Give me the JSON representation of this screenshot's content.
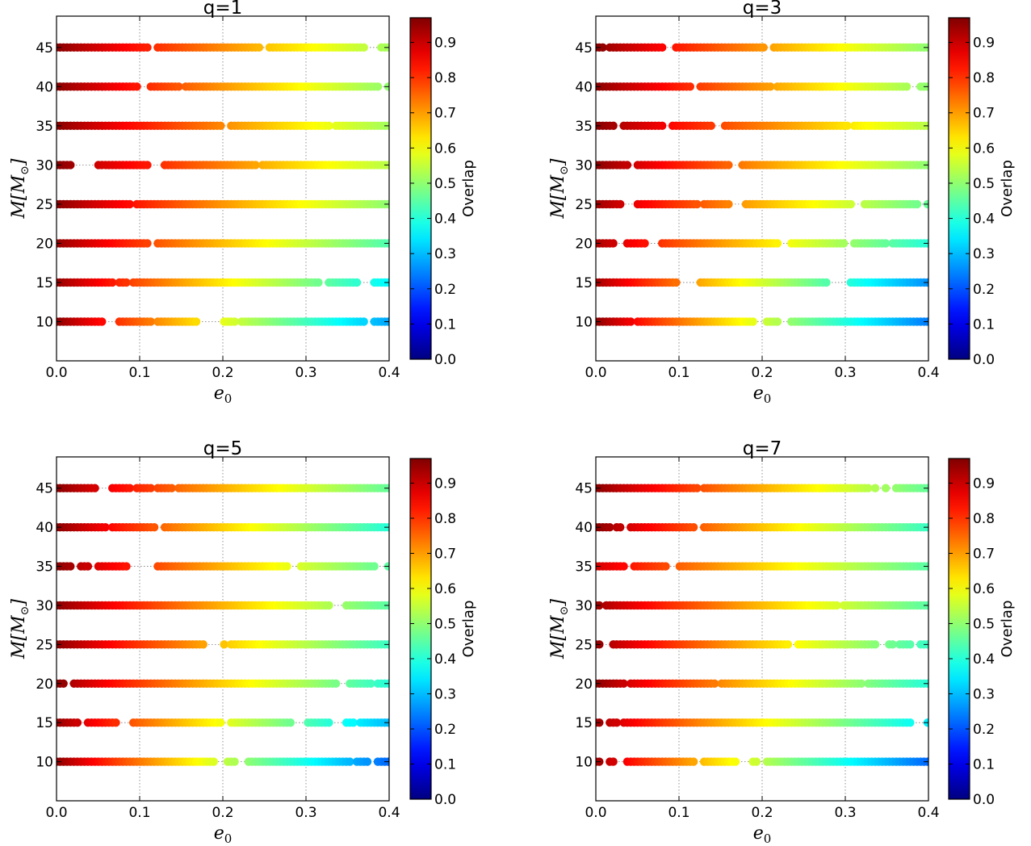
{
  "colormap": "jet",
  "colorbar": {
    "label": "Overlap",
    "range": [
      0.0,
      0.97
    ],
    "ticks": [
      "0.0",
      "0.1",
      "0.2",
      "0.3",
      "0.4",
      "0.5",
      "0.6",
      "0.7",
      "0.8",
      "0.9"
    ],
    "tick_values": [
      0.0,
      0.1,
      0.2,
      0.3,
      0.4,
      0.5,
      0.6,
      0.7,
      0.8,
      0.9
    ]
  },
  "chart_data": [
    {
      "type": "scatter",
      "title": "q=1",
      "xlabel": "e0",
      "ylabel": "M[M⊙]",
      "xlim": [
        0.0,
        0.4
      ],
      "ylim": [
        5,
        49
      ],
      "xticks": [
        "0.0",
        "0.1",
        "0.2",
        "0.3",
        "0.4"
      ],
      "xtick_values": [
        0.0,
        0.1,
        0.2,
        0.3,
        0.4
      ],
      "yticks": [
        "10",
        "15",
        "20",
        "25",
        "30",
        "35",
        "40",
        "45"
      ],
      "ytick_values": [
        10,
        15,
        20,
        25,
        30,
        35,
        40,
        45
      ],
      "grid": true,
      "rows": [
        {
          "M": 10,
          "e_start": 0.0,
          "e_end": 0.4,
          "overlap_start": 0.97,
          "overlap_end": 0.28,
          "gaps": [
            [
              0.055,
              0.075
            ],
            [
              0.115,
              0.12
            ],
            [
              0.17,
              0.2
            ],
            [
              0.215,
              0.22
            ],
            [
              0.37,
              0.38
            ]
          ]
        },
        {
          "M": 15,
          "e_start": 0.0,
          "e_end": 0.4,
          "overlap_start": 0.96,
          "overlap_end": 0.36,
          "gaps": [
            [
              0.07,
              0.075
            ],
            [
              0.085,
              0.09
            ],
            [
              0.315,
              0.325
            ],
            [
              0.365,
              0.38
            ]
          ]
        },
        {
          "M": 20,
          "e_start": 0.0,
          "e_end": 0.4,
          "overlap_start": 0.96,
          "overlap_end": 0.44,
          "gaps": [
            [
              0.11,
              0.118
            ]
          ]
        },
        {
          "M": 25,
          "e_start": 0.0,
          "e_end": 0.4,
          "overlap_start": 0.97,
          "overlap_end": 0.5,
          "gaps": [
            [
              0.09,
              0.095
            ]
          ]
        },
        {
          "M": 30,
          "e_start": 0.0,
          "e_end": 0.4,
          "overlap_start": 0.97,
          "overlap_end": 0.54,
          "gaps": [
            [
              0.02,
              0.05
            ],
            [
              0.11,
              0.13
            ],
            [
              0.24,
              0.245
            ]
          ]
        },
        {
          "M": 35,
          "e_start": 0.0,
          "e_end": 0.4,
          "overlap_start": 0.97,
          "overlap_end": 0.52,
          "gaps": [
            [
              0.2,
              0.21
            ],
            [
              0.33,
              0.335
            ]
          ]
        },
        {
          "M": 40,
          "e_start": 0.0,
          "e_end": 0.4,
          "overlap_start": 0.97,
          "overlap_end": 0.5,
          "gaps": [
            [
              0.098,
              0.112
            ],
            [
              0.148,
              0.152
            ],
            [
              0.39,
              0.397
            ]
          ]
        },
        {
          "M": 45,
          "e_start": 0.0,
          "e_end": 0.4,
          "overlap_start": 0.97,
          "overlap_end": 0.52,
          "gaps": [
            [
              0.11,
              0.12
            ],
            [
              0.245,
              0.255
            ],
            [
              0.37,
              0.39
            ]
          ]
        }
      ]
    },
    {
      "type": "scatter",
      "title": "q=3",
      "xlabel": "e0",
      "ylabel": "M[M⊙]",
      "xlim": [
        0.0,
        0.4
      ],
      "ylim": [
        5,
        49
      ],
      "xticks": [
        "0.0",
        "0.1",
        "0.2",
        "0.3",
        "0.4"
      ],
      "xtick_values": [
        0.0,
        0.1,
        0.2,
        0.3,
        0.4
      ],
      "yticks": [
        "10",
        "15",
        "20",
        "25",
        "30",
        "35",
        "40",
        "45"
      ],
      "ytick_values": [
        10,
        15,
        20,
        25,
        30,
        35,
        40,
        45
      ],
      "grid": true,
      "rows": [
        {
          "M": 10,
          "e_start": 0.0,
          "e_end": 0.4,
          "overlap_start": 0.97,
          "overlap_end": 0.24,
          "gaps": [
            [
              0.045,
              0.05
            ],
            [
              0.19,
              0.205
            ],
            [
              0.22,
              0.235
            ]
          ]
        },
        {
          "M": 15,
          "e_start": 0.0,
          "e_end": 0.4,
          "overlap_start": 0.95,
          "overlap_end": 0.26,
          "gaps": [
            [
              0.1,
              0.125
            ],
            [
              0.28,
              0.305
            ]
          ]
        },
        {
          "M": 20,
          "e_start": 0.0,
          "e_end": 0.4,
          "overlap_start": 0.94,
          "overlap_end": 0.4,
          "gaps": [
            [
              0.025,
              0.035
            ],
            [
              0.06,
              0.078
            ],
            [
              0.22,
              0.235
            ],
            [
              0.3,
              0.31
            ],
            [
              0.35,
              0.355
            ]
          ]
        },
        {
          "M": 25,
          "e_start": 0.0,
          "e_end": 0.4,
          "overlap_start": 0.95,
          "overlap_end": 0.46,
          "gaps": [
            [
              0.03,
              0.05
            ],
            [
              0.125,
              0.13
            ],
            [
              0.16,
              0.18
            ],
            [
              0.31,
              0.32
            ],
            [
              0.39,
              0.395
            ]
          ]
        },
        {
          "M": 30,
          "e_start": 0.0,
          "e_end": 0.4,
          "overlap_start": 0.97,
          "overlap_end": 0.5,
          "gaps": [
            [
              0.04,
              0.05
            ],
            [
              0.16,
              0.175
            ]
          ]
        },
        {
          "M": 35,
          "e_start": 0.0,
          "e_end": 0.4,
          "overlap_start": 0.97,
          "overlap_end": 0.54,
          "gaps": [
            [
              0.025,
              0.032
            ],
            [
              0.082,
              0.09
            ],
            [
              0.142,
              0.152
            ],
            [
              0.305,
              0.31
            ]
          ]
        },
        {
          "M": 40,
          "e_start": 0.0,
          "e_end": 0.4,
          "overlap_start": 0.97,
          "overlap_end": 0.5,
          "gaps": [
            [
              0.115,
              0.122
            ],
            [
              0.212,
              0.218
            ],
            [
              0.375,
              0.39
            ]
          ]
        },
        {
          "M": 45,
          "e_start": 0.0,
          "e_end": 0.4,
          "overlap_start": 0.97,
          "overlap_end": 0.5,
          "gaps": [
            [
              0.01,
              0.015
            ],
            [
              0.082,
              0.095
            ],
            [
              0.205,
              0.212
            ]
          ]
        }
      ]
    },
    {
      "type": "scatter",
      "title": "q=5",
      "xlabel": "e0",
      "ylabel": "M[M⊙]",
      "xlim": [
        0.0,
        0.4
      ],
      "ylim": [
        5,
        49
      ],
      "xticks": [
        "0.0",
        "0.1",
        "0.2",
        "0.3",
        "0.4"
      ],
      "xtick_values": [
        0.0,
        0.1,
        0.2,
        0.3,
        0.4
      ],
      "yticks": [
        "10",
        "15",
        "20",
        "25",
        "30",
        "35",
        "40",
        "45"
      ],
      "ytick_values": [
        10,
        15,
        20,
        25,
        30,
        35,
        40,
        45
      ],
      "grid": true,
      "rows": [
        {
          "M": 10,
          "e_start": 0.0,
          "e_end": 0.4,
          "overlap_start": 0.97,
          "overlap_end": 0.22,
          "gaps": [
            [
              0.19,
              0.205
            ],
            [
              0.215,
              0.228
            ],
            [
              0.355,
              0.36
            ],
            [
              0.375,
              0.385
            ]
          ]
        },
        {
          "M": 15,
          "e_start": 0.0,
          "e_end": 0.4,
          "overlap_start": 0.96,
          "overlap_end": 0.3,
          "gaps": [
            [
              0.028,
              0.035
            ],
            [
              0.072,
              0.09
            ],
            [
              0.2,
              0.21
            ],
            [
              0.285,
              0.3
            ],
            [
              0.33,
              0.345
            ],
            [
              0.36,
              0.365
            ]
          ]
        },
        {
          "M": 20,
          "e_start": 0.0,
          "e_end": 0.4,
          "overlap_start": 0.97,
          "overlap_end": 0.4,
          "gaps": [
            [
              0.01,
              0.018
            ],
            [
              0.34,
              0.35
            ],
            [
              0.38,
              0.385
            ]
          ]
        },
        {
          "M": 25,
          "e_start": 0.0,
          "e_end": 0.4,
          "overlap_start": 0.97,
          "overlap_end": 0.42,
          "gaps": [
            [
              0.09,
              0.092
            ],
            [
              0.18,
              0.2
            ],
            [
              0.205,
              0.21
            ]
          ]
        },
        {
          "M": 30,
          "e_start": 0.0,
          "e_end": 0.4,
          "overlap_start": 0.97,
          "overlap_end": 0.45,
          "gaps": [
            [
              0.33,
              0.345
            ]
          ]
        },
        {
          "M": 35,
          "e_start": 0.0,
          "e_end": 0.4,
          "overlap_start": 0.97,
          "overlap_end": 0.45,
          "gaps": [
            [
              0.02,
              0.028
            ],
            [
              0.04,
              0.05
            ],
            [
              0.085,
              0.118
            ],
            [
              0.28,
              0.29
            ],
            [
              0.385,
              0.398
            ]
          ]
        },
        {
          "M": 40,
          "e_start": 0.0,
          "e_end": 0.4,
          "overlap_start": 0.97,
          "overlap_end": 0.4,
          "gaps": [
            [
              0.06,
              0.065
            ],
            [
              0.118,
              0.127
            ]
          ]
        },
        {
          "M": 45,
          "e_start": 0.0,
          "e_end": 0.4,
          "overlap_start": 0.97,
          "overlap_end": 0.46,
          "gaps": [
            [
              0.05,
              0.065
            ],
            [
              0.09,
              0.095
            ],
            [
              0.115,
              0.12
            ],
            [
              0.14,
              0.145
            ]
          ]
        }
      ]
    },
    {
      "type": "scatter",
      "title": "q=7",
      "xlabel": "e0",
      "ylabel": "M[M⊙]",
      "xlim": [
        0.0,
        0.4
      ],
      "ylim": [
        5,
        49
      ],
      "xticks": [
        "0.0",
        "0.1",
        "0.2",
        "0.3",
        "0.4"
      ],
      "xtick_values": [
        0.0,
        0.1,
        0.2,
        0.3,
        0.4
      ],
      "yticks": [
        "10",
        "15",
        "20",
        "25",
        "30",
        "35",
        "40",
        "45"
      ],
      "ytick_values": [
        10,
        15,
        20,
        25,
        30,
        35,
        40,
        45
      ],
      "grid": true,
      "rows": [
        {
          "M": 10,
          "e_start": 0.0,
          "e_end": 0.4,
          "overlap_start": 0.95,
          "overlap_end": 0.22,
          "gaps": [
            [
              0.005,
              0.015
            ],
            [
              0.025,
              0.035
            ],
            [
              0.12,
              0.13
            ],
            [
              0.17,
              0.185
            ],
            [
              0.195,
              0.205
            ]
          ]
        },
        {
          "M": 15,
          "e_start": 0.0,
          "e_end": 0.4,
          "overlap_start": 0.95,
          "overlap_end": 0.35,
          "gaps": [
            [
              0.005,
              0.015
            ],
            [
              0.028,
              0.033
            ],
            [
              0.38,
              0.395
            ]
          ]
        },
        {
          "M": 20,
          "e_start": 0.0,
          "e_end": 0.4,
          "overlap_start": 0.97,
          "overlap_end": 0.4,
          "gaps": [
            [
              0.035,
              0.04
            ],
            [
              0.145,
              0.148
            ],
            [
              0.32,
              0.325
            ]
          ]
        },
        {
          "M": 25,
          "e_start": 0.0,
          "e_end": 0.4,
          "overlap_start": 0.96,
          "overlap_end": 0.42,
          "gaps": [
            [
              0.005,
              0.018
            ],
            [
              0.235,
              0.24
            ],
            [
              0.34,
              0.35
            ],
            [
              0.36,
              0.365
            ],
            [
              0.38,
              0.39
            ]
          ]
        },
        {
          "M": 30,
          "e_start": 0.0,
          "e_end": 0.4,
          "overlap_start": 0.95,
          "overlap_end": 0.45,
          "gaps": [
            [
              0.005,
              0.01
            ],
            [
              0.29,
              0.295
            ]
          ]
        },
        {
          "M": 35,
          "e_start": 0.0,
          "e_end": 0.4,
          "overlap_start": 0.9,
          "overlap_end": 0.45,
          "gaps": [
            [
              0.035,
              0.045
            ],
            [
              0.088,
              0.1
            ]
          ]
        },
        {
          "M": 40,
          "e_start": 0.0,
          "e_end": 0.4,
          "overlap_start": 0.97,
          "overlap_end": 0.42,
          "gaps": [
            [
              0.02,
              0.025
            ],
            [
              0.03,
              0.04
            ],
            [
              0.12,
              0.128
            ]
          ]
        },
        {
          "M": 45,
          "e_start": 0.0,
          "e_end": 0.4,
          "overlap_start": 0.97,
          "overlap_end": 0.46,
          "gaps": [
            [
              0.125,
              0.13
            ],
            [
              0.33,
              0.335
            ],
            [
              0.34,
              0.345
            ],
            [
              0.35,
              0.358
            ]
          ]
        }
      ]
    }
  ]
}
